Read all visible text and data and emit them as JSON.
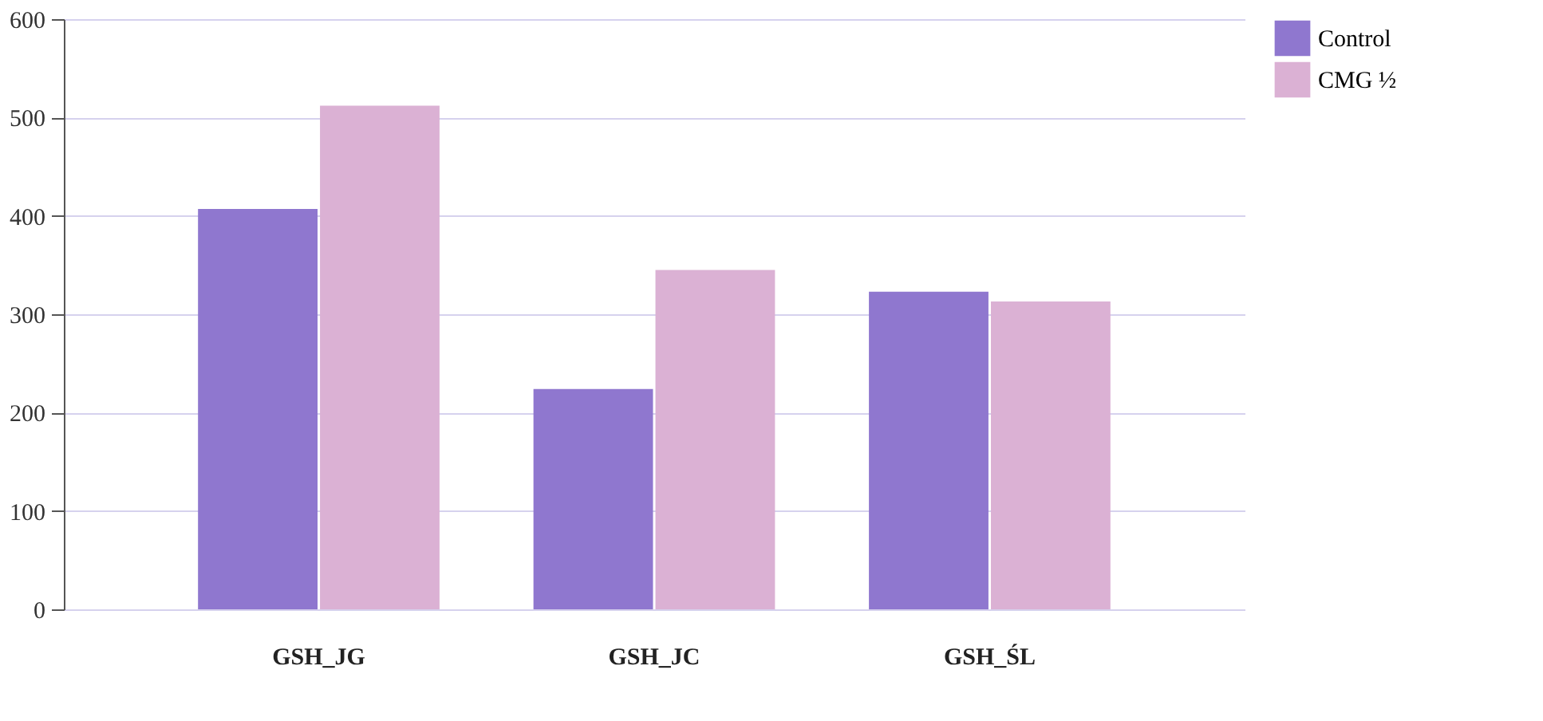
{
  "chart_data": {
    "type": "bar",
    "categories": [
      "GSH_JG",
      "GSH_JC",
      "GSH_ŚL"
    ],
    "series": [
      {
        "name": "Control",
        "color": "#8f77cf",
        "values": [
          407,
          224,
          323
        ]
      },
      {
        "name": "CMG ½",
        "color": "#dbb1d4",
        "values": [
          512,
          345,
          313
        ]
      }
    ],
    "ylim": [
      0,
      600
    ],
    "yticks": [
      0,
      100,
      200,
      300,
      400,
      500,
      600
    ],
    "grid": "y",
    "legend": "top right"
  }
}
